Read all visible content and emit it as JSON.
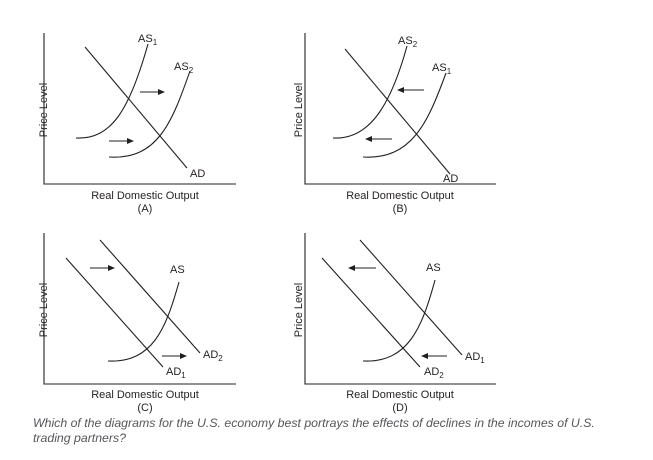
{
  "question": "Which of the diagrams for the U.S. economy best portrays the effects of declines in the incomes of U.S. trading partners?",
  "panels": [
    {
      "id": "A",
      "y_axis_label": "Price Level",
      "x_axis_label": "Real Domestic Output",
      "caption": "(A)",
      "curves": [
        {
          "name": "AS",
          "sub": "1"
        },
        {
          "name": "AS",
          "sub": "2"
        },
        {
          "name": "AD",
          "sub": ""
        }
      ],
      "shift": "AS right"
    },
    {
      "id": "B",
      "y_axis_label": "Price Level",
      "x_axis_label": "Real Domestic Output",
      "caption": "(B)",
      "curves": [
        {
          "name": "AS",
          "sub": "2"
        },
        {
          "name": "AS",
          "sub": "1"
        },
        {
          "name": "AD",
          "sub": ""
        }
      ],
      "shift": "AS left"
    },
    {
      "id": "C",
      "y_axis_label": "Price Level",
      "x_axis_label": "Real Domestic Output",
      "caption": "(C)",
      "curves": [
        {
          "name": "AS",
          "sub": ""
        },
        {
          "name": "AD",
          "sub": "2"
        },
        {
          "name": "AD",
          "sub": "1"
        }
      ],
      "shift": "AD right"
    },
    {
      "id": "D",
      "y_axis_label": "Price Level",
      "x_axis_label": "Real Domestic Output",
      "caption": "(D)",
      "curves": [
        {
          "name": "AS",
          "sub": ""
        },
        {
          "name": "AD",
          "sub": "1"
        },
        {
          "name": "AD",
          "sub": "2"
        }
      ],
      "shift": "AD left"
    }
  ]
}
